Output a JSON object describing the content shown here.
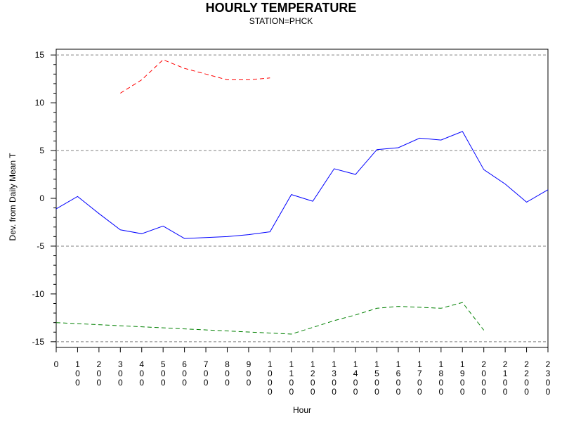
{
  "chart_data": {
    "type": "line",
    "title": "HOURLY TEMPERATURE",
    "subtitle": "STATION=PHCK",
    "xlabel": "Hour",
    "ylabel": "Dev. from Daily Mean T",
    "xlim": [
      0,
      2300
    ],
    "ylim": [
      -15.6,
      15.6
    ],
    "x_ticks": [
      0,
      100,
      200,
      300,
      400,
      500,
      600,
      700,
      800,
      900,
      1000,
      1100,
      1200,
      1300,
      1400,
      1500,
      1600,
      1700,
      1800,
      1900,
      2000,
      2100,
      2200,
      2300
    ],
    "x_tick_labels": [
      "0",
      "100",
      "200",
      "300",
      "400",
      "500",
      "600",
      "700",
      "800",
      "900",
      "1000",
      "1100",
      "1200",
      "1300",
      "1400",
      "1500",
      "1600",
      "1700",
      "1800",
      "1900",
      "2000",
      "2100",
      "2200",
      "2300"
    ],
    "y_ticks": [
      -15,
      -10,
      -5,
      0,
      5,
      10,
      15
    ],
    "y_tick_labels": [
      "-15",
      "-10",
      "-5",
      "0",
      "5",
      "10",
      "15"
    ],
    "reference_lines": [
      -15,
      -5,
      5,
      15
    ],
    "grid": false,
    "series": [
      {
        "style": "solid",
        "color": "#0000ff",
        "x": [
          0,
          100,
          200,
          300,
          400,
          500,
          600,
          700,
          800,
          900,
          1000,
          1100,
          1200,
          1300,
          1400,
          1500,
          1600,
          1700,
          1800,
          1900,
          2000,
          2100,
          2200,
          2300
        ],
        "y": [
          -1.1,
          0.2,
          -1.6,
          -3.3,
          -3.7,
          -2.9,
          -4.2,
          -4.1,
          -4.0,
          -3.8,
          -3.5,
          0.4,
          -0.3,
          3.1,
          2.5,
          5.1,
          5.3,
          6.3,
          6.1,
          7.0,
          3.0,
          1.5,
          -0.4,
          0.9
        ]
      },
      {
        "style": "dashed",
        "color": "#ff0000",
        "x": [
          300,
          400,
          500,
          600,
          700,
          800,
          900,
          1000
        ],
        "y": [
          11.0,
          12.4,
          14.5,
          13.6,
          13.0,
          12.4,
          12.4,
          12.6
        ]
      },
      {
        "style": "dashed",
        "color": "#008000",
        "x": [
          0,
          1100,
          1200,
          1300,
          1400,
          1500,
          1600,
          1700,
          1800,
          1900,
          2000
        ],
        "y": [
          -13.0,
          -14.2,
          -13.5,
          -12.8,
          -12.2,
          -11.5,
          -11.3,
          -11.4,
          -11.5,
          -10.9,
          -13.8
        ]
      }
    ]
  }
}
